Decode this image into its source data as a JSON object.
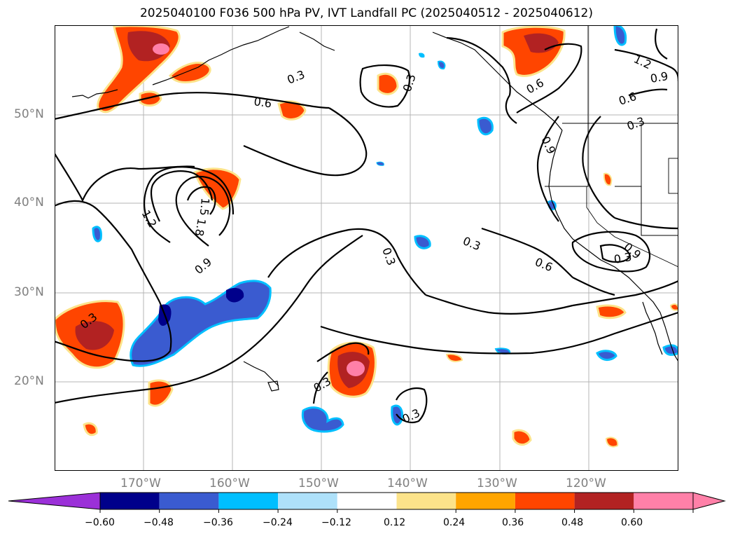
{
  "title": "2025040100 F036 500 hPa PV, IVT Landfall PC (2025040512 - 2025040612)",
  "map": {
    "lat_labels": [
      "50°N",
      "40°N",
      "30°N",
      "20°N"
    ],
    "lon_labels": [
      "170°W",
      "160°W",
      "150°W",
      "140°W",
      "130°W",
      "120°W"
    ],
    "contour_labels": [
      "0.3",
      "0.3",
      "0.3",
      "0.3",
      "0.3",
      "0.3",
      "0.3",
      "0.3",
      "0.3",
      "0.6",
      "0.6",
      "0.6",
      "0.6",
      "0.9",
      "0.9",
      "0.9",
      "0.9",
      "1.2",
      "1.2",
      "1.5",
      "1.8"
    ]
  },
  "colorbar": {
    "tick_labels": [
      "−0.60",
      "−0.48",
      "−0.36",
      "−0.24",
      "−0.12",
      "0.12",
      "0.24",
      "0.36",
      "0.48",
      "0.60"
    ],
    "colors": [
      "#9b30d8",
      "#00008b",
      "#3a5bd0",
      "#00bfff",
      "#aee1fa",
      "#ffffff",
      "#fce38a",
      "#ffa500",
      "#ff4500",
      "#b22222",
      "#ff80a8",
      "#ff80a8"
    ]
  }
}
